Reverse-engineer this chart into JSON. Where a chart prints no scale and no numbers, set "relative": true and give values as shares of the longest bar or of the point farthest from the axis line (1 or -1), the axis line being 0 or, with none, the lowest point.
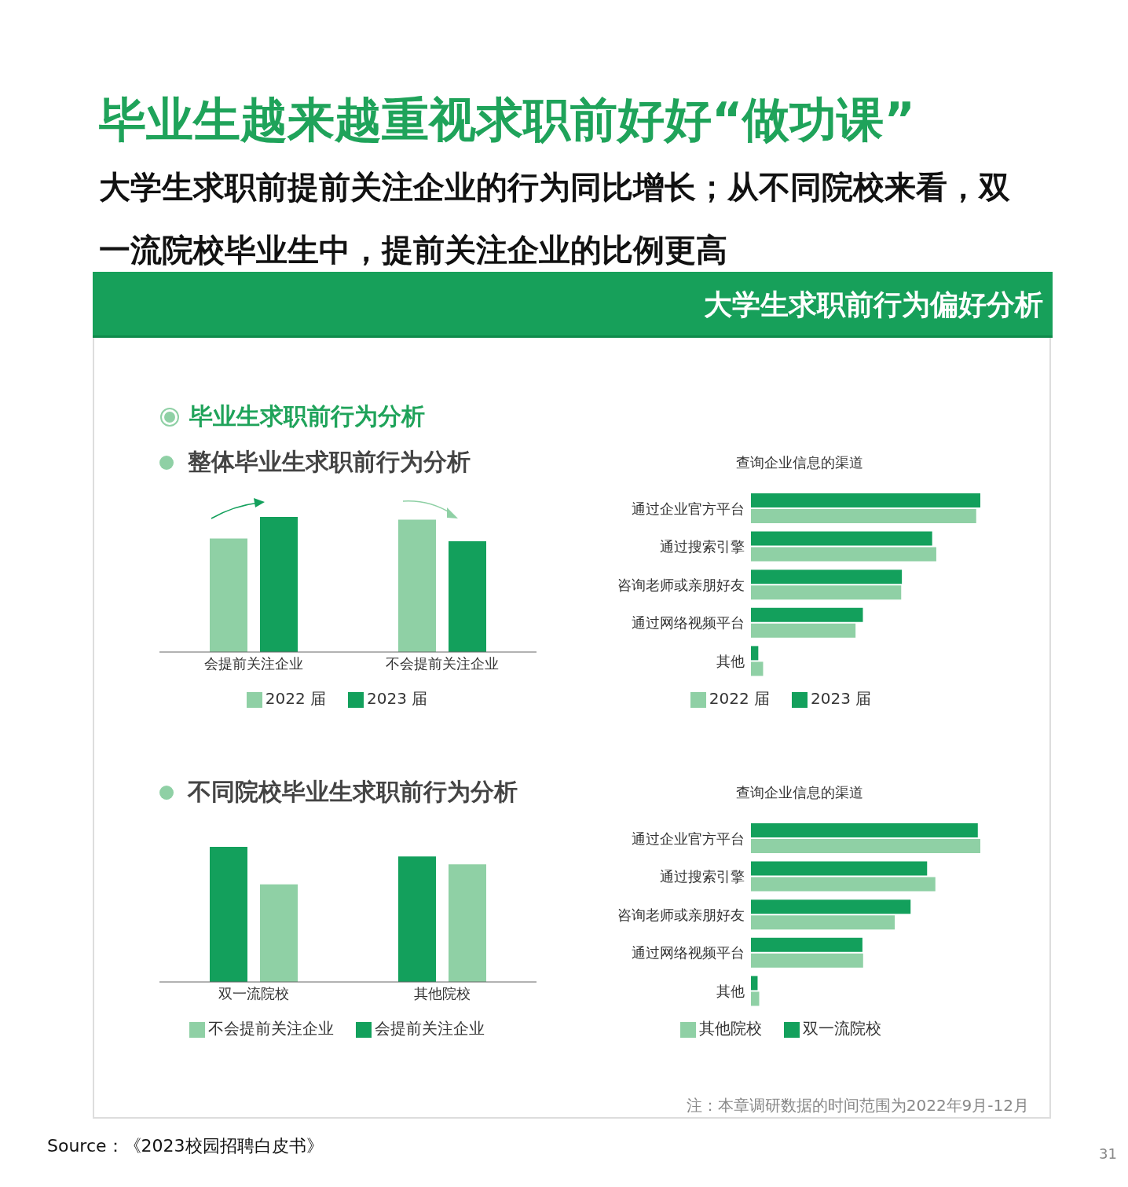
{
  "chart_data": [
    {
      "type": "bar",
      "title": "整体毕业生求职前行为分析",
      "relative": true,
      "legend": "bottom",
      "categories": [
        "会提前关注企业",
        "不会提前关注企业"
      ],
      "series": [
        {
          "name": "2022 届",
          "color": "#8fd0a5",
          "values": [
            0.84,
            0.98
          ]
        },
        {
          "name": "2023 届",
          "color": "#13a05c",
          "values": [
            1,
            0.82
          ]
        }
      ],
      "annotations": [
        "毕业生越来越重视求职前好好“做功课”",
        "大学生求职前提前关注企业的行为同比增长；从不同院校来看，双一流院校毕业生中，提前关注企业的比例更高",
        "大学生求职前行为偏好分析",
        "毕业生求职前行为分析"
      ]
    },
    {
      "type": "bar",
      "orientation": "horizontal",
      "title": "查询企业信息的渠道",
      "relative": true,
      "legend": "bottom",
      "categories": [
        "通过企业官方平台",
        "通过搜索引擎",
        "咨询老师或亲朋好友",
        "通过网络视频平台",
        "其他"
      ],
      "series": [
        {
          "name": "2023 届",
          "color": "#13a05c",
          "values": [
            1,
            0.79,
            0.658,
            0.488,
            0.032
          ]
        },
        {
          "name": "2022 届",
          "color": "#8fd0a5",
          "values": [
            0.982,
            0.808,
            0.655,
            0.456,
            0.053
          ]
        }
      ]
    },
    {
      "type": "bar",
      "title": "不同院校毕业生求职前行为分析",
      "relative": true,
      "legend": "bottom",
      "categories": [
        "双一流院校",
        "其他院校"
      ],
      "series": [
        {
          "name": "会提前关注企业",
          "color": "#13a05c",
          "values": [
            1,
            0.929
          ]
        },
        {
          "name": "不会提前关注企业",
          "color": "#8fd0a5",
          "values": [
            0.723,
            0.87
          ]
        }
      ]
    },
    {
      "type": "bar",
      "orientation": "horizontal",
      "title": "查询企业信息的渠道",
      "relative": true,
      "legend": "bottom",
      "categories": [
        "通过企业官方平台",
        "通过搜索引擎",
        "咨询老师或亲朋好友",
        "通过网络视频平台",
        "其他"
      ],
      "series": [
        {
          "name": "双一流院校",
          "color": "#13a05c",
          "values": [
            0.989,
            0.768,
            0.696,
            0.486,
            0.029
          ]
        },
        {
          "name": "其他院校",
          "color": "#8fd0a5",
          "values": [
            1,
            0.804,
            0.627,
            0.489,
            0.036
          ]
        }
      ],
      "annotations": [
        "注：本章调研数据的时间范围为2022年9月-12月",
        "Source：《2023校园招聘白皮书》",
        "31"
      ]
    }
  ]
}
